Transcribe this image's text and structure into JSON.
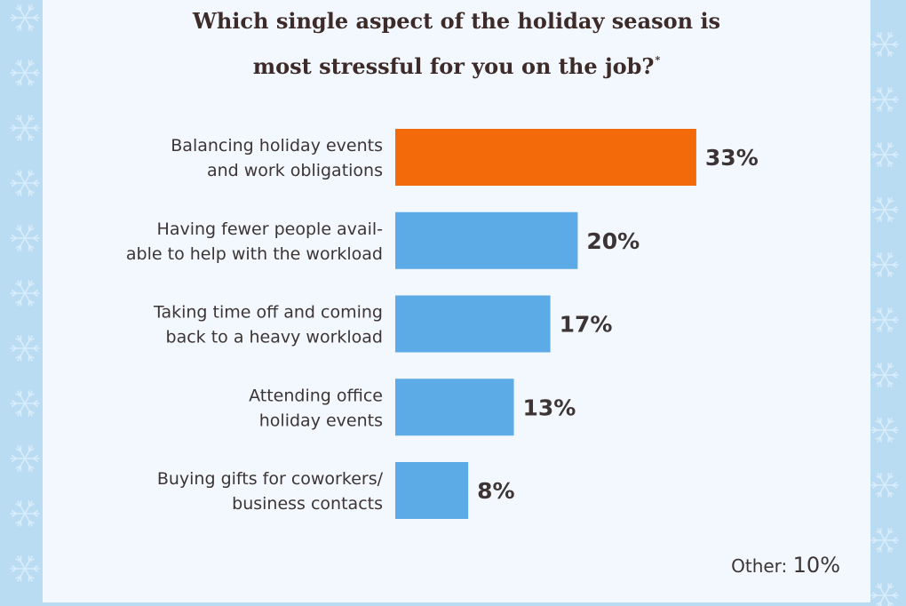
{
  "chart_data": {
    "type": "bar",
    "orientation": "horizontal",
    "title_lines": [
      "Which single aspect of the holiday season is",
      "most stressful for you on the job?"
    ],
    "title_footnote_mark": "*",
    "categories": [
      [
        "Balancing holiday events",
        "and work obligations"
      ],
      [
        "Having fewer people avail-",
        "able to help with the workload"
      ],
      [
        "Taking time off and coming",
        "back to a heavy workload"
      ],
      [
        "Attending office",
        "holiday events"
      ],
      [
        "Buying gifts for coworkers/",
        "business contacts"
      ]
    ],
    "values": [
      33,
      20,
      17,
      13,
      8
    ],
    "value_labels": [
      "33%",
      "20%",
      "17%",
      "13%",
      "8%"
    ],
    "unit": "%",
    "highlight_index": 0,
    "colors": {
      "bar": "#5caae6",
      "highlight": "#f26a0a",
      "text": "#3d3535",
      "background": "#f2f8fd",
      "border": "#b9dcf3"
    },
    "other": {
      "label": "Other:",
      "value": "10%"
    },
    "grid": false,
    "legend": "none"
  }
}
